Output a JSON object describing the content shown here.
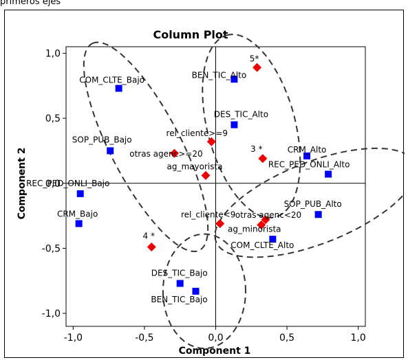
{
  "page_caption": "primeros ejes",
  "chart_data": {
    "type": "scatter",
    "title": "Column Plot",
    "xlabel": "Component 1",
    "ylabel": "Component 2",
    "xlim": [
      -1.05,
      1.05
    ],
    "ylim": [
      -1.1,
      1.05
    ],
    "xticks": [
      -1.0,
      -0.5,
      0.0,
      0.5,
      1.0
    ],
    "xtick_labels": [
      "-1,0",
      "-0,5",
      "0,0",
      "0,5",
      "1,0"
    ],
    "yticks": [
      -1.0,
      -0.5,
      0.0,
      0.5,
      1.0
    ],
    "ytick_labels": [
      "-1,0",
      "-0,5",
      "0,0",
      "0,5",
      "1,0"
    ],
    "reference_lines": {
      "x": 0,
      "y": 0
    },
    "grid": false,
    "colors": {
      "blue_series": "#0000ff",
      "red_series": "#ee0000",
      "ellipse": "#333333"
    },
    "series": [
      {
        "marker": "square",
        "color": "#0000ff",
        "points": [
          {
            "label": "COM_CLTE_Bajo",
            "x": -0.68,
            "y": 0.73
          },
          {
            "label": "BEN_TIC_Alto",
            "x": 0.13,
            "y": 0.8
          },
          {
            "label": "DES_TIC_Alto",
            "x": 0.13,
            "y": 0.45
          },
          {
            "label": "SOP_PUB_Bajo",
            "x": -0.74,
            "y": 0.25
          },
          {
            "label": "CRM_Alto",
            "x": 0.64,
            "y": 0.21
          },
          {
            "label": "REC_PED_ONLI_Alto",
            "x": 0.79,
            "y": 0.07
          },
          {
            "label": "REC_PED_ONLI_Bajo",
            "x": -0.95,
            "y": -0.08
          },
          {
            "label": "CRM_Bajo",
            "x": -0.96,
            "y": -0.31
          },
          {
            "label": "SOP_PUB_Alto",
            "x": 0.72,
            "y": -0.24
          },
          {
            "label": "COM_CLTE_Alto",
            "x": 0.4,
            "y": -0.43
          },
          {
            "label": "DES_TIC_Bajo",
            "x": -0.25,
            "y": -0.77
          },
          {
            "label": "BEN_TIC_Bajo",
            "x": -0.14,
            "y": -0.83
          }
        ]
      },
      {
        "marker": "diamond",
        "color": "#ee0000",
        "points": [
          {
            "label": "5*",
            "x": 0.29,
            "y": 0.89
          },
          {
            "label": "rel_cliente>=9",
            "x": -0.03,
            "y": 0.32
          },
          {
            "label": "otras agenc>=20",
            "x": -0.29,
            "y": 0.23
          },
          {
            "label": "3 *",
            "x": 0.33,
            "y": 0.19
          },
          {
            "label": "ag_mayorista",
            "x": -0.07,
            "y": 0.06
          },
          {
            "label": "rel_cliente<9",
            "x": 0.03,
            "y": -0.31
          },
          {
            "label": "otras agenc<20",
            "x": 0.35,
            "y": -0.28
          },
          {
            "label": "ag_minorista",
            "x": 0.32,
            "y": -0.32
          },
          {
            "label": "4 *",
            "x": -0.45,
            "y": -0.49
          }
        ]
      }
    ],
    "ellipses": [
      {
        "cx": -0.49,
        "cy": 0.28,
        "rx": 0.88,
        "ry": 0.25,
        "angle_deg": 115
      },
      {
        "cx": 0.25,
        "cy": 0.44,
        "rx": 0.72,
        "ry": 0.31,
        "angle_deg": 103
      },
      {
        "cx": 0.7,
        "cy": -0.15,
        "rx": 0.76,
        "ry": 0.31,
        "angle_deg": 24
      },
      {
        "cx": -0.08,
        "cy": -0.83,
        "rx": 0.29,
        "ry": 0.44,
        "angle_deg": 0
      }
    ]
  }
}
